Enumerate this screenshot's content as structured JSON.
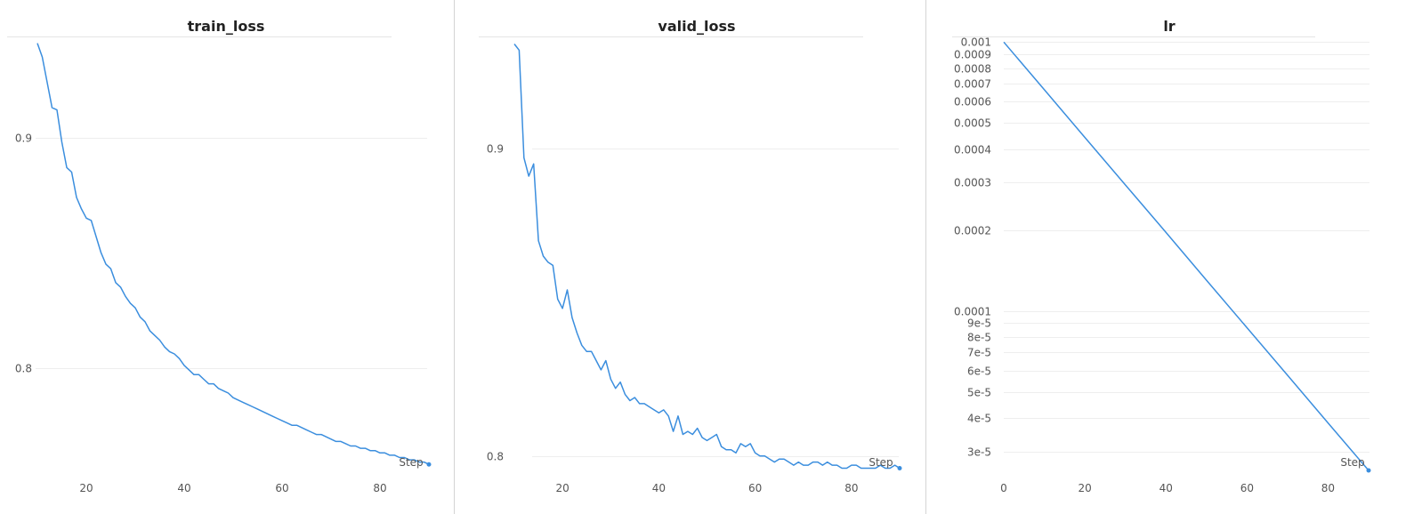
{
  "chart_data": [
    {
      "type": "line",
      "title": "train_loss",
      "xlabel": "Step",
      "ylabel": "",
      "xlim": [
        10,
        90
      ],
      "ylim": [
        0.755,
        0.942
      ],
      "y_scale": "linear",
      "x_ticks": [
        20,
        40,
        60,
        80
      ],
      "y_ticks": [
        0.8,
        0.9
      ],
      "y_tick_labels": [
        "0.8",
        "0.9"
      ],
      "grid": true,
      "color": "#3b8ede",
      "series": [
        {
          "x": [
            10,
            11,
            12,
            13,
            14,
            15,
            16,
            17,
            18,
            19,
            20,
            21,
            22,
            23,
            24,
            25,
            26,
            27,
            28,
            29,
            30,
            31,
            32,
            33,
            34,
            35,
            36,
            37,
            38,
            39,
            40,
            41,
            42,
            43,
            44,
            45,
            46,
            47,
            48,
            49,
            50,
            51,
            52,
            53,
            54,
            55,
            56,
            57,
            58,
            59,
            60,
            61,
            62,
            63,
            64,
            65,
            66,
            67,
            68,
            69,
            70,
            71,
            72,
            73,
            74,
            75,
            76,
            77,
            78,
            79,
            80,
            81,
            82,
            83,
            84,
            85,
            86,
            87,
            88,
            89,
            90
          ],
          "y": [
            0.941,
            0.935,
            0.924,
            0.913,
            0.912,
            0.898,
            0.887,
            0.885,
            0.874,
            0.869,
            0.865,
            0.864,
            0.857,
            0.85,
            0.845,
            0.843,
            0.837,
            0.835,
            0.831,
            0.828,
            0.826,
            0.822,
            0.82,
            0.816,
            0.814,
            0.812,
            0.809,
            0.807,
            0.806,
            0.804,
            0.801,
            0.799,
            0.797,
            0.797,
            0.795,
            0.793,
            0.793,
            0.791,
            0.79,
            0.789,
            0.787,
            0.786,
            0.785,
            0.784,
            0.783,
            0.782,
            0.781,
            0.78,
            0.779,
            0.778,
            0.777,
            0.776,
            0.775,
            0.775,
            0.774,
            0.773,
            0.772,
            0.771,
            0.771,
            0.77,
            0.769,
            0.768,
            0.768,
            0.767,
            0.766,
            0.766,
            0.765,
            0.765,
            0.764,
            0.764,
            0.763,
            0.763,
            0.762,
            0.762,
            0.761,
            0.761,
            0.76,
            0.76,
            0.759,
            0.759,
            0.758
          ]
        }
      ]
    },
    {
      "type": "line",
      "title": "valid_loss",
      "xlabel": "Step",
      "ylabel": "",
      "xlim": [
        10,
        90
      ],
      "ylim": [
        0.795,
        0.935
      ],
      "y_scale": "linear",
      "x_ticks": [
        20,
        40,
        60,
        80
      ],
      "y_ticks": [
        0.8,
        0.9
      ],
      "y_tick_labels": [
        "0.8",
        "0.9"
      ],
      "grid": true,
      "color": "#3b8ede",
      "series": [
        {
          "x": [
            10,
            11,
            12,
            13,
            14,
            15,
            16,
            17,
            18,
            19,
            20,
            21,
            22,
            23,
            24,
            25,
            26,
            27,
            28,
            29,
            30,
            31,
            32,
            33,
            34,
            35,
            36,
            37,
            38,
            39,
            40,
            41,
            42,
            43,
            44,
            45,
            46,
            47,
            48,
            49,
            50,
            51,
            52,
            53,
            54,
            55,
            56,
            57,
            58,
            59,
            60,
            61,
            62,
            63,
            64,
            65,
            66,
            67,
            68,
            69,
            70,
            71,
            72,
            73,
            74,
            75,
            76,
            77,
            78,
            79,
            80,
            81,
            82,
            83,
            84,
            85,
            86,
            87,
            88,
            89,
            90
          ],
          "y": [
            0.934,
            0.932,
            0.897,
            0.891,
            0.895,
            0.87,
            0.865,
            0.863,
            0.862,
            0.851,
            0.848,
            0.854,
            0.845,
            0.84,
            0.836,
            0.834,
            0.834,
            0.831,
            0.828,
            0.831,
            0.825,
            0.822,
            0.824,
            0.82,
            0.818,
            0.819,
            0.817,
            0.817,
            0.816,
            0.815,
            0.814,
            0.815,
            0.813,
            0.808,
            0.813,
            0.807,
            0.808,
            0.807,
            0.809,
            0.806,
            0.805,
            0.806,
            0.807,
            0.803,
            0.802,
            0.802,
            0.801,
            0.804,
            0.803,
            0.804,
            0.801,
            0.8,
            0.8,
            0.799,
            0.798,
            0.799,
            0.799,
            0.798,
            0.797,
            0.798,
            0.797,
            0.797,
            0.798,
            0.798,
            0.797,
            0.798,
            0.797,
            0.797,
            0.796,
            0.796,
            0.797,
            0.797,
            0.796,
            0.796,
            0.796,
            0.796,
            0.797,
            0.796,
            0.796,
            0.797,
            0.796
          ]
        }
      ]
    },
    {
      "type": "line",
      "title": "lr",
      "xlabel": "Step",
      "ylabel": "",
      "xlim": [
        0,
        90
      ],
      "ylim": [
        2.53e-05,
        0.00101
      ],
      "y_scale": "log",
      "x_ticks": [
        0,
        20,
        40,
        60,
        80
      ],
      "y_ticks": [
        0.001,
        0.0009,
        0.0008,
        0.0007,
        0.0006,
        0.0005,
        0.0004,
        0.0003,
        0.0002,
        0.0001,
        9e-05,
        8e-05,
        7e-05,
        6e-05,
        5e-05,
        4e-05,
        3e-05
      ],
      "y_tick_labels": [
        "0.001",
        "0.0009",
        "0.0008",
        "0.0007",
        "0.0006",
        "0.0005",
        "0.0004",
        "0.0003",
        "0.0002",
        "0.0001",
        "9e-5",
        "8e-5",
        "7e-5",
        "6e-5",
        "5e-5",
        "4e-5",
        "3e-5"
      ],
      "grid": true,
      "color": "#3b8ede",
      "series": [
        {
          "x": [
            0,
            10,
            20,
            30,
            40,
            50,
            60,
            70,
            80,
            90
          ],
          "y": [
            0.001,
            0.000665,
            0.000442,
            0.000294,
            0.000196,
            0.00013,
            8.66e-05,
            5.76e-05,
            3.83e-05,
            2.55e-05
          ]
        }
      ]
    }
  ]
}
